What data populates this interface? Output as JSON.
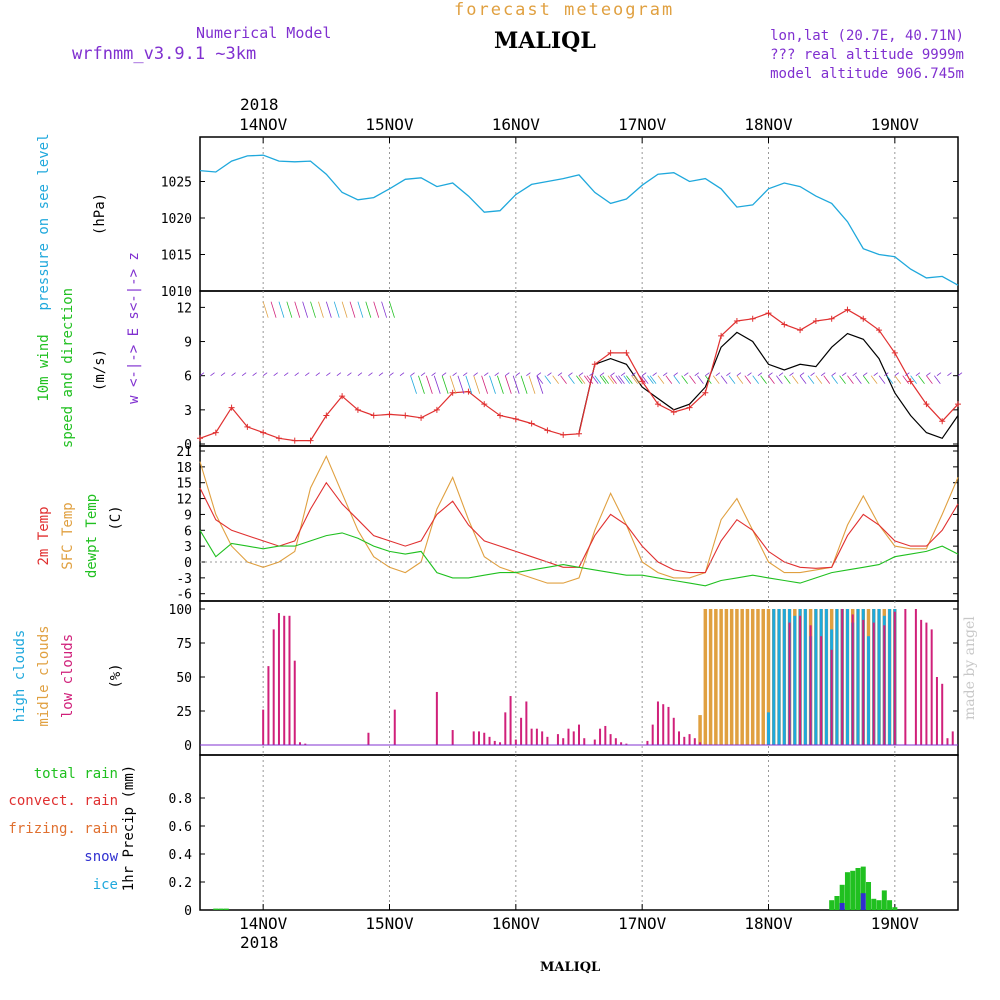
{
  "header": {
    "title": "forecast meteogram",
    "station": "MALIQL",
    "model_label": "Numerical Model",
    "model_name": "wrfnmm_v3.9.1   ~3km",
    "coords": "lon,lat (20.7E, 40.71N)",
    "real_altitude": "??? real altitude 9999m",
    "model_altitude": "model altitude  906.745m",
    "year_top": "2018",
    "year_bottom": "2018",
    "station_bottom": "MALIQL",
    "watermark": "made by angel"
  },
  "colors": {
    "pressure": "#1fa8dc",
    "wind_speed": "#e03030",
    "wind_gust": "#000000",
    "temp2m": "#e03030",
    "sfc": "#e0a040",
    "dewpt": "#20c020",
    "high": "#1fa8dc",
    "middle": "#e0a040",
    "low": "#d0207a",
    "total": "#20c020",
    "convect": "#e03030",
    "frizing": "#e07030",
    "snow": "#3030d0",
    "ice": "#1fa8dc",
    "wind_dir": "#8030d0"
  },
  "days": [
    "14NOV",
    "15NOV",
    "16NOV",
    "17NOV",
    "18NOV",
    "19NOV"
  ],
  "chart_data": [
    {
      "type": "line",
      "panel": "pressure",
      "ylabel": [
        "pressure on see level",
        "(hPa)"
      ],
      "ylim": [
        1010,
        1030
      ],
      "yticks": [
        1010,
        1015,
        1020,
        1025
      ],
      "x_unit": "hours since 13NOV 12:00",
      "series": [
        {
          "name": "pressure on see level",
          "x": [
            0,
            3,
            6,
            9,
            12,
            15,
            18,
            21,
            24,
            27,
            30,
            33,
            36,
            39,
            42,
            45,
            48,
            51,
            54,
            57,
            60,
            63,
            66,
            69,
            72,
            75,
            78,
            81,
            84,
            87,
            90,
            93,
            96,
            99,
            102,
            105,
            108,
            111,
            114,
            117,
            120,
            123,
            126,
            129,
            132,
            135,
            138,
            141,
            144
          ],
          "y": [
            1026.5,
            1026.3,
            1027.8,
            1028.5,
            1028.6,
            1027.8,
            1027.7,
            1027.8,
            1026.0,
            1023.5,
            1022.5,
            1022.8,
            1024.0,
            1025.3,
            1025.5,
            1024.3,
            1024.8,
            1023.0,
            1020.8,
            1021.0,
            1023.2,
            1024.6,
            1025.0,
            1025.4,
            1025.9,
            1023.5,
            1022.0,
            1022.6,
            1024.5,
            1026.0,
            1026.2,
            1025.0,
            1025.4,
            1024.0,
            1021.5,
            1021.8,
            1024.0,
            1024.8,
            1024.3,
            1023.0,
            1022.0,
            1019.5,
            1015.8,
            1015.0,
            1014.7,
            1013.0,
            1011.8,
            1012.0,
            1010.8
          ]
        }
      ]
    },
    {
      "type": "line",
      "panel": "wind",
      "ylabel": [
        "10m wind",
        "speed and direction",
        "(m/s)"
      ],
      "compass": "w <-|-> E   s<-|-> z",
      "ylim": [
        0,
        13
      ],
      "yticks": [
        0,
        3,
        6,
        9,
        12
      ],
      "series": [
        {
          "name": "speed",
          "x": [
            0,
            3,
            6,
            9,
            12,
            15,
            18,
            21,
            24,
            27,
            30,
            33,
            36,
            39,
            42,
            45,
            48,
            51,
            54,
            57,
            60,
            63,
            66,
            69,
            72,
            75,
            78,
            81,
            84,
            87,
            90,
            93,
            96,
            99,
            102,
            105,
            108,
            111,
            114,
            117,
            120,
            123,
            126,
            129,
            132,
            135,
            138,
            141,
            144
          ],
          "y": [
            0.5,
            1.0,
            3.2,
            1.5,
            1.0,
            0.5,
            0.3,
            0.3,
            2.5,
            4.2,
            3.0,
            2.5,
            2.6,
            2.5,
            2.3,
            3.0,
            4.5,
            4.6,
            3.5,
            2.5,
            2.2,
            1.8,
            1.2,
            0.8,
            0.9,
            7.0,
            8.0,
            8.0,
            5.5,
            3.5,
            2.8,
            3.2,
            4.5,
            9.5,
            10.8,
            11.0,
            11.5,
            10.5,
            10.0,
            10.8,
            11.0,
            11.8,
            11.0,
            10.0,
            8.0,
            5.5,
            3.5,
            2.0,
            3.5
          ]
        },
        {
          "name": "gust",
          "x": [
            72,
            75,
            78,
            81,
            84,
            87,
            90,
            93,
            96,
            99,
            102,
            105,
            108,
            111,
            114,
            117,
            120,
            123,
            126,
            129,
            132,
            135,
            138,
            141,
            144
          ],
          "y": [
            1.0,
            7.0,
            7.5,
            7.0,
            5.0,
            4.0,
            3.0,
            3.5,
            5.0,
            8.5,
            9.8,
            9.0,
            7.0,
            6.5,
            7.0,
            6.8,
            8.5,
            9.7,
            9.2,
            7.5,
            4.5,
            2.5,
            1.0,
            0.5,
            2.5
          ]
        }
      ]
    },
    {
      "type": "line",
      "panel": "temperature",
      "ylabel": [
        "2m Temp",
        "SFC Temp",
        "dewpt Temp",
        "(C)"
      ],
      "ylim": [
        -7,
        21
      ],
      "yticks": [
        -6,
        -3,
        0,
        3,
        6,
        9,
        12,
        15,
        18,
        21
      ],
      "series": [
        {
          "name": "2m Temp",
          "x": [
            0,
            3,
            6,
            9,
            12,
            15,
            18,
            21,
            24,
            27,
            30,
            33,
            36,
            39,
            42,
            45,
            48,
            51,
            54,
            57,
            60,
            63,
            66,
            69,
            72,
            75,
            78,
            81,
            84,
            87,
            90,
            93,
            96,
            99,
            102,
            105,
            108,
            111,
            114,
            117,
            120,
            123,
            126,
            129,
            132,
            135,
            138,
            141,
            144
          ],
          "y": [
            14,
            8,
            6,
            5,
            4,
            3,
            4,
            10,
            15,
            11,
            8,
            5,
            4,
            3,
            4,
            9,
            11.5,
            7,
            4,
            3,
            2,
            1,
            0,
            -1,
            -1,
            5,
            9,
            7,
            3,
            0,
            -1.5,
            -2,
            -2,
            4,
            8,
            6,
            2,
            0,
            -1,
            -1.2,
            -1,
            5,
            9,
            7,
            4,
            3,
            3,
            6,
            11
          ]
        },
        {
          "name": "SFC Temp",
          "x": [
            0,
            3,
            6,
            9,
            12,
            15,
            18,
            21,
            24,
            27,
            30,
            33,
            36,
            39,
            42,
            45,
            48,
            51,
            54,
            57,
            60,
            63,
            66,
            69,
            72,
            75,
            78,
            81,
            84,
            87,
            90,
            93,
            96,
            99,
            102,
            105,
            108,
            111,
            114,
            117,
            120,
            123,
            126,
            129,
            132,
            135,
            138,
            141,
            144
          ],
          "y": [
            19,
            9,
            3,
            0,
            -1,
            0,
            2,
            14,
            20,
            13,
            6,
            1,
            -1,
            -2,
            0,
            10,
            16,
            8,
            1,
            -1,
            -2,
            -3,
            -4,
            -4,
            -3,
            6,
            13,
            7,
            0,
            -2,
            -3,
            -3,
            -2,
            8,
            12,
            6,
            0,
            -2,
            -2,
            -1.5,
            -1,
            7,
            12.5,
            7,
            3,
            2.5,
            2.5,
            9,
            16
          ]
        },
        {
          "name": "dewpt Temp",
          "x": [
            0,
            3,
            6,
            9,
            12,
            15,
            18,
            21,
            24,
            27,
            30,
            33,
            36,
            39,
            42,
            45,
            48,
            51,
            54,
            57,
            60,
            63,
            66,
            69,
            72,
            75,
            78,
            81,
            84,
            87,
            90,
            93,
            96,
            99,
            102,
            105,
            108,
            111,
            114,
            117,
            120,
            123,
            126,
            129,
            132,
            135,
            138,
            141,
            144
          ],
          "y": [
            6,
            1,
            3.5,
            3,
            2.5,
            3,
            3,
            4,
            5,
            5.5,
            4.5,
            3,
            2,
            1.5,
            2,
            -2,
            -3,
            -3,
            -2.5,
            -2,
            -2,
            -1.5,
            -1,
            -0.5,
            -1,
            -1.5,
            -2,
            -2.5,
            -2.5,
            -3,
            -3.5,
            -4,
            -4.5,
            -3.5,
            -3,
            -2.5,
            -3,
            -3.5,
            -4,
            -3,
            -2,
            -1.5,
            -1,
            -0.5,
            1,
            1.5,
            2,
            3,
            1.5
          ]
        }
      ]
    },
    {
      "type": "bar",
      "panel": "clouds",
      "ylabel": [
        "high clouds",
        "midle clouds",
        "low clouds",
        "(%)"
      ],
      "ylim": [
        0,
        100
      ],
      "yticks": [
        0,
        25,
        50,
        75,
        100
      ],
      "series": [
        {
          "name": "low clouds",
          "x": [
            12,
            13,
            14,
            15,
            16,
            17,
            18,
            19,
            20,
            32,
            37,
            45,
            48,
            52,
            53,
            54,
            55,
            56,
            57,
            58,
            59,
            60,
            61,
            62,
            63,
            64,
            65,
            66,
            68,
            69,
            70,
            71,
            72,
            73,
            75,
            76,
            77,
            78,
            79,
            80,
            81,
            85,
            86,
            87,
            88,
            89,
            90,
            91,
            92,
            93,
            94,
            95,
            112,
            114,
            116,
            118,
            120,
            122,
            124,
            126,
            128,
            130,
            132,
            134,
            136,
            137,
            138,
            139,
            140,
            141,
            142,
            143
          ],
          "y": [
            26,
            58,
            85,
            97,
            95,
            95,
            62,
            2,
            1,
            9,
            26,
            39,
            11,
            10,
            10,
            9,
            6,
            3,
            2,
            24,
            36,
            4,
            20,
            32,
            12,
            12,
            10,
            6,
            8,
            5,
            12,
            10,
            15,
            5,
            4,
            12,
            14,
            8,
            5,
            2,
            1,
            3,
            15,
            32,
            30,
            28,
            20,
            10,
            6,
            8,
            5,
            2,
            90,
            95,
            88,
            80,
            70,
            100,
            96,
            92,
            90,
            88,
            98,
            100,
            100,
            92,
            90,
            85,
            50,
            45,
            5,
            10
          ]
        },
        {
          "name": "midle clouds",
          "x": [
            95,
            96,
            97,
            98,
            99,
            100,
            101,
            102,
            103,
            104,
            105,
            106,
            107,
            108,
            109,
            110,
            111,
            112,
            113,
            114,
            115,
            116,
            117,
            118,
            119,
            120,
            121,
            122,
            123,
            124,
            125,
            126,
            127,
            128,
            129,
            130,
            131,
            132
          ],
          "y": [
            22,
            100,
            100,
            100,
            100,
            100,
            100,
            100,
            100,
            100,
            100,
            100,
            100,
            100,
            100,
            100,
            100,
            100,
            100,
            100,
            100,
            100,
            100,
            100,
            100,
            100,
            100,
            100,
            100,
            100,
            100,
            100,
            100,
            100,
            100,
            100,
            100,
            100
          ]
        },
        {
          "name": "high clouds",
          "x": [
            108,
            109,
            110,
            111,
            112,
            113,
            114,
            115,
            116,
            117,
            118,
            119,
            120,
            121,
            122,
            123,
            124,
            125,
            126,
            127,
            128,
            129,
            130,
            131,
            132
          ],
          "y": [
            24,
            100,
            100,
            100,
            100,
            95,
            100,
            100,
            80,
            100,
            100,
            100,
            85,
            100,
            100,
            100,
            90,
            100,
            100,
            80,
            100,
            100,
            95,
            100,
            100
          ]
        }
      ]
    },
    {
      "type": "bar",
      "panel": "precipitation",
      "ylabel": [
        "1hr Precip (mm)"
      ],
      "legend": [
        "total      rain",
        "convect. rain",
        "frizing. rain",
        "snow",
        "ice"
      ],
      "ylim": [
        0,
        1
      ],
      "yticks": [
        0,
        0.2,
        0.4,
        0.6,
        0.8
      ],
      "series": [
        {
          "name": "total rain",
          "x": [
            3,
            4,
            5,
            120,
            121,
            122,
            123,
            124,
            125,
            126,
            127,
            128,
            129,
            130,
            131,
            132
          ],
          "y": [
            0.01,
            0.01,
            0.01,
            0.07,
            0.1,
            0.18,
            0.27,
            0.28,
            0.3,
            0.31,
            0.2,
            0.08,
            0.07,
            0.14,
            0.07,
            0.02
          ]
        },
        {
          "name": "snow",
          "x": [
            122,
            126
          ],
          "y": [
            0.05,
            0.12
          ]
        }
      ]
    }
  ]
}
